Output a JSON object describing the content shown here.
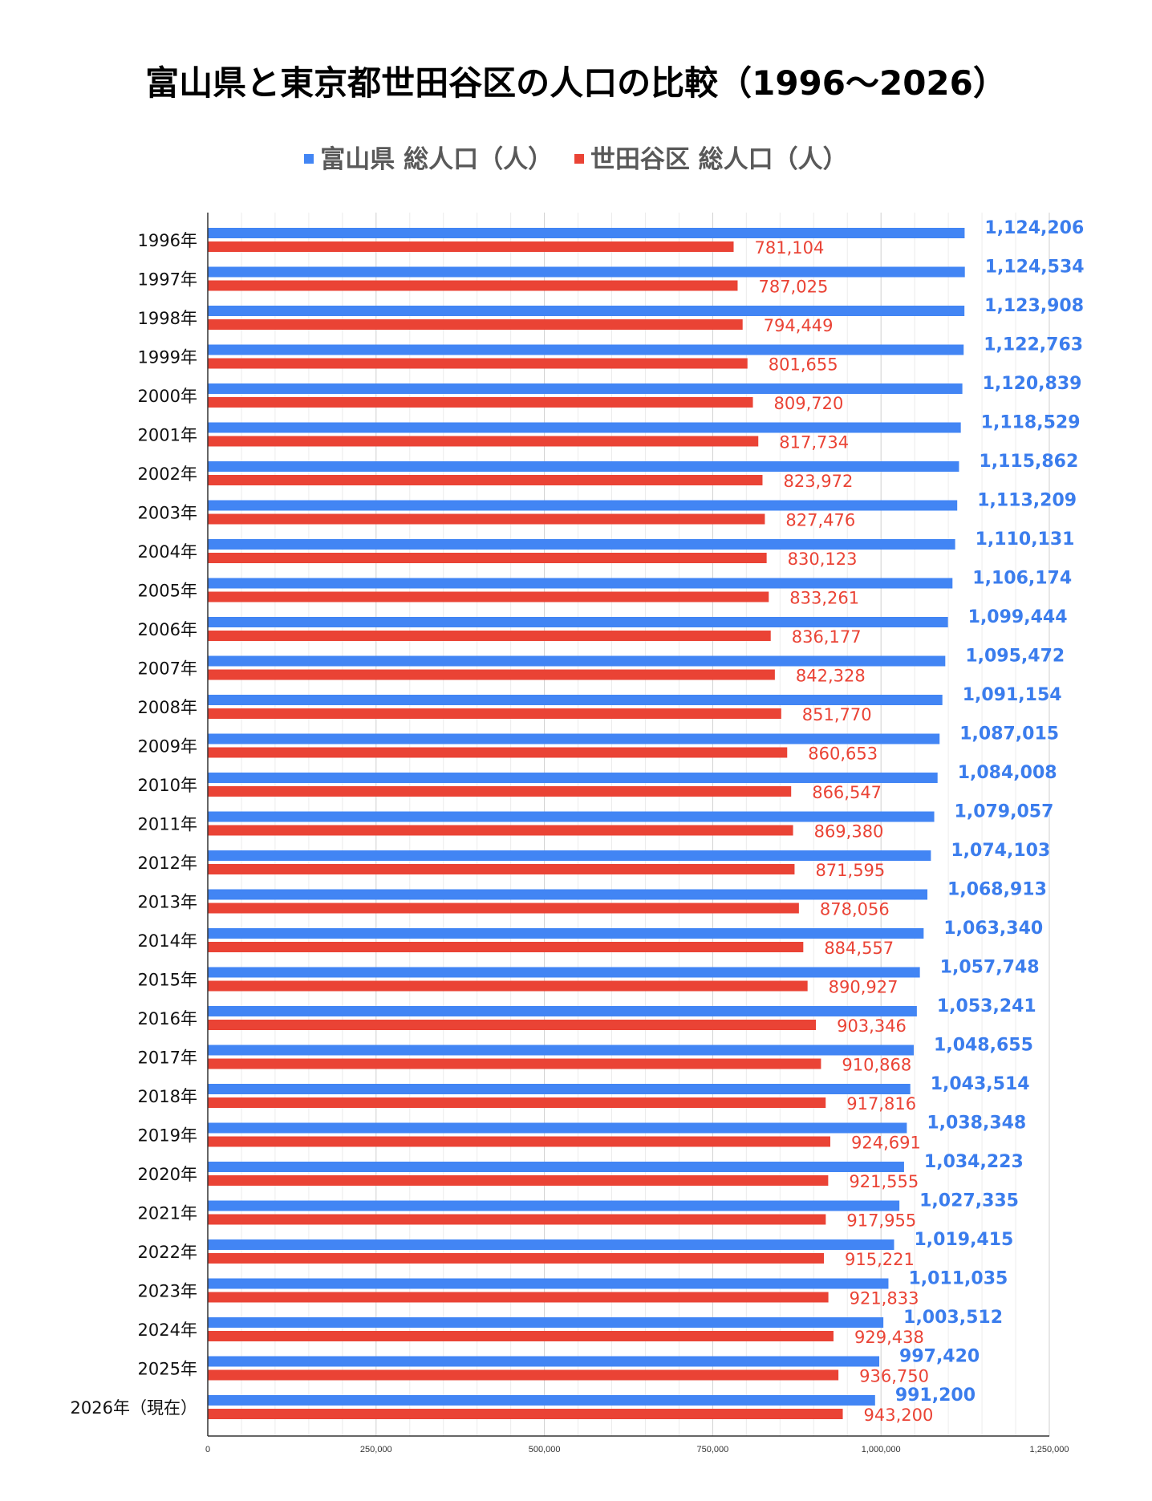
{
  "chart_data": {
    "type": "bar",
    "orientation": "horizontal",
    "title": "富山県と東京都世田谷区の人口の比較（1996〜2026）",
    "categories": [
      "1996年",
      "1997年",
      "1998年",
      "1999年",
      "2000年",
      "2001年",
      "2002年",
      "2003年",
      "2004年",
      "2005年",
      "2006年",
      "2007年",
      "2008年",
      "2009年",
      "2010年",
      "2011年",
      "2012年",
      "2013年",
      "2014年",
      "2015年",
      "2016年",
      "2017年",
      "2018年",
      "2019年",
      "2020年",
      "2021年",
      "2022年",
      "2023年",
      "2024年",
      "2025年",
      "2026年（現在）"
    ],
    "series": [
      {
        "name": "富山県 総人口（人）",
        "color": "#4285f4",
        "label_color": "#3b7ded",
        "values": [
          1124206,
          1124534,
          1123908,
          1122763,
          1120839,
          1118529,
          1115862,
          1113209,
          1110131,
          1106174,
          1099444,
          1095472,
          1091154,
          1087015,
          1084008,
          1079057,
          1074103,
          1068913,
          1063340,
          1057748,
          1053241,
          1048655,
          1043514,
          1038348,
          1034223,
          1027335,
          1019415,
          1011035,
          1003512,
          997420,
          991200
        ],
        "labels": [
          "1,124,206",
          "1,124,534",
          "1,123,908",
          "1,122,763",
          "1,120,839",
          "1,118,529",
          "1,115,862",
          "1,113,209",
          "1,110,131",
          "1,106,174",
          "1,099,444",
          "1,095,472",
          "1,091,154",
          "1,087,015",
          "1,084,008",
          "1,079,057",
          "1,074,103",
          "1,068,913",
          "1,063,340",
          "1,057,748",
          "1,053,241",
          "1,048,655",
          "1,043,514",
          "1,038,348",
          "1,034,223",
          "1,027,335",
          "1,019,415",
          "1,011,035",
          "1,003,512",
          "997,420",
          "991,200"
        ]
      },
      {
        "name": "世田谷区 総人口（人）",
        "color": "#ea4335",
        "label_color": "#ea4335",
        "values": [
          781104,
          787025,
          794449,
          801655,
          809720,
          817734,
          823972,
          827476,
          830123,
          833261,
          836177,
          842328,
          851770,
          860653,
          866547,
          869380,
          871595,
          878056,
          884557,
          890927,
          903346,
          910868,
          917816,
          924691,
          921555,
          917955,
          915221,
          921833,
          929438,
          936750,
          943200
        ],
        "labels": [
          "781,104",
          "787,025",
          "794,449",
          "801,655",
          "809,720",
          "817,734",
          "823,972",
          "827,476",
          "830,123",
          "833,261",
          "836,177",
          "842,328",
          "851,770",
          "860,653",
          "866,547",
          "869,380",
          "871,595",
          "878,056",
          "884,557",
          "890,927",
          "903,346",
          "910,868",
          "917,816",
          "924,691",
          "921,555",
          "917,955",
          "915,221",
          "921,833",
          "929,438",
          "936,750",
          "943,200"
        ]
      }
    ],
    "xlim": [
      0,
      1250000
    ],
    "xticks": [
      0,
      250000,
      500000,
      750000,
      1000000,
      1250000
    ],
    "xtick_labels": [
      "0",
      "250,000",
      "500,000",
      "750,000",
      "1,000,000",
      "1,250,000"
    ],
    "grid": "vertical",
    "legend": "top-center",
    "xlabel": "",
    "ylabel": ""
  }
}
